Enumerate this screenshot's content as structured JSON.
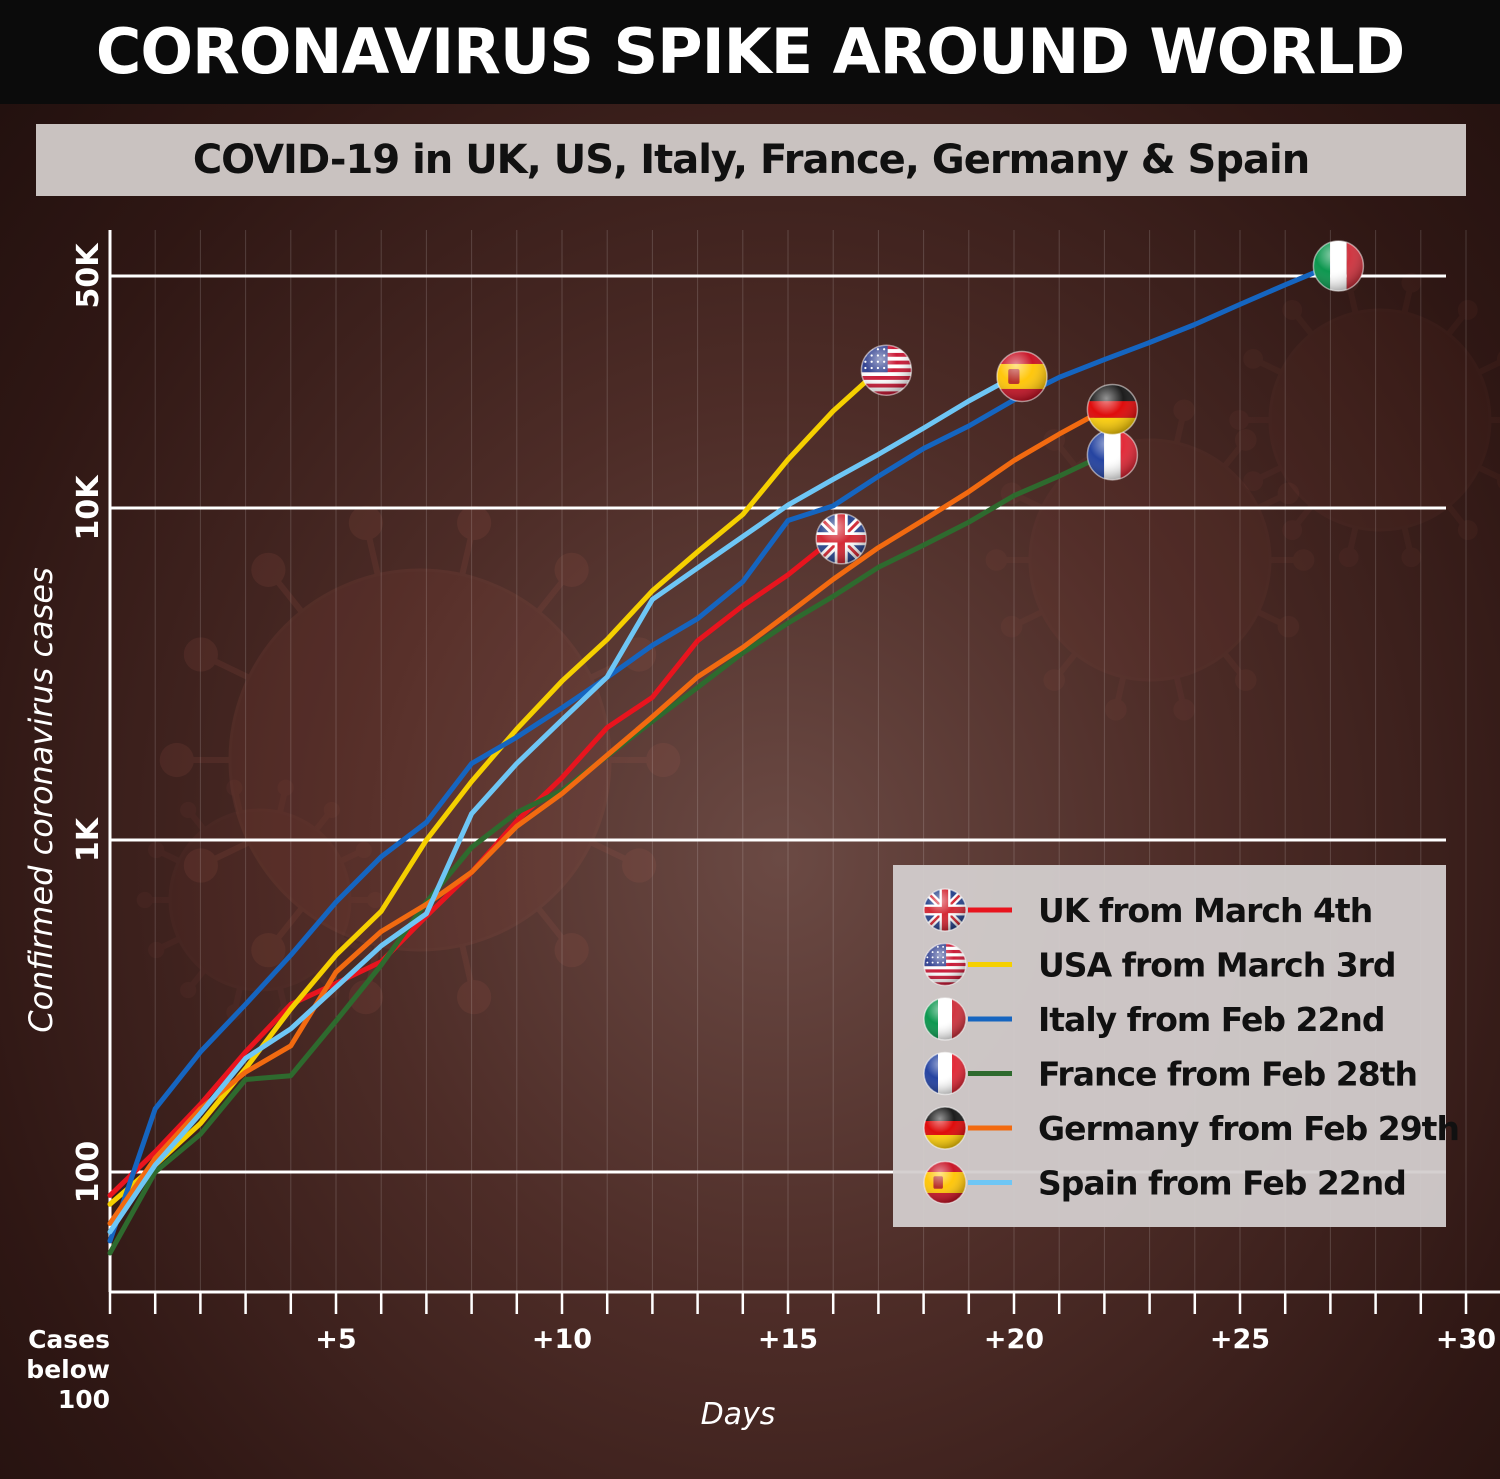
{
  "headline": "CORONAVIRUS SPIKE AROUND WORLD",
  "chart_data": {
    "type": "line",
    "title": "COVID-19 in UK, US, Italy, France, Germany & Spain",
    "xlabel": "Days",
    "ylabel": "Confirmed coronavirus cases",
    "y_scale": "log",
    "ylim": [
      45,
      60000
    ],
    "xlim": [
      0,
      30
    ],
    "x_ticks": [
      {
        "value": 0,
        "label": "Cases below 100"
      },
      {
        "value": 5,
        "label": "+5"
      },
      {
        "value": 10,
        "label": "+10"
      },
      {
        "value": 15,
        "label": "+15"
      },
      {
        "value": 20,
        "label": "+20"
      },
      {
        "value": 25,
        "label": "+25"
      },
      {
        "value": 30,
        "label": "+30"
      }
    ],
    "y_ticks": [
      {
        "value": 100,
        "label": "100"
      },
      {
        "value": 1000,
        "label": "1K"
      },
      {
        "value": 10000,
        "label": "10K"
      },
      {
        "value": 50000,
        "label": "50K"
      }
    ],
    "legend_position": "bottom-right",
    "series": [
      {
        "name": "UK from March 4th",
        "color": "#e8141e",
        "flag": "uk-flag",
        "x": [
          0,
          1,
          2,
          3,
          4,
          5,
          6,
          7,
          8,
          9,
          10,
          11,
          12,
          13,
          14,
          15,
          16
        ],
        "y": [
          85,
          115,
          160,
          230,
          320,
          370,
          430,
          590,
          800,
          1140,
          1540,
          2180,
          2690,
          3980,
          5080,
          6290,
          8080
        ]
      },
      {
        "name": "USA from March 3rd",
        "color": "#f5d000",
        "flag": "us-flag",
        "x": [
          0,
          1,
          2,
          3,
          4,
          5,
          6,
          7,
          8,
          9,
          10,
          11,
          12,
          13,
          14,
          15,
          16,
          17
        ],
        "y": [
          80,
          105,
          140,
          205,
          310,
          450,
          610,
          1000,
          1500,
          2160,
          3010,
          4020,
          5630,
          7380,
          9560,
          14000,
          19600,
          26000
        ]
      },
      {
        "name": "Italy from Feb 22nd",
        "color": "#1565c0",
        "flag": "italy-flag",
        "x": [
          0,
          1,
          2,
          3,
          4,
          5,
          6,
          7,
          8,
          9,
          10,
          11,
          12,
          13,
          14,
          15,
          16,
          17,
          18,
          19,
          20,
          21,
          22,
          23,
          24,
          25,
          26,
          27
        ],
        "y": [
          62,
          155,
          230,
          320,
          450,
          650,
          890,
          1130,
          1700,
          2040,
          2500,
          3090,
          3860,
          4640,
          6000,
          9170,
          10150,
          12460,
          15110,
          17660,
          21160,
          24750,
          27980,
          31510,
          35710,
          41040,
          47020,
          53580
        ]
      },
      {
        "name": "France from Feb 28th",
        "color": "#2e6a2e",
        "flag": "france-flag",
        "x": [
          0,
          1,
          2,
          3,
          4,
          5,
          6,
          7,
          8,
          9,
          10,
          11,
          12,
          13,
          14,
          15,
          16,
          17,
          18,
          19,
          20,
          21,
          22
        ],
        "y": [
          57,
          100,
          130,
          190,
          195,
          285,
          420,
          650,
          950,
          1210,
          1410,
          1790,
          2280,
          2880,
          3660,
          4500,
          5420,
          6630,
          7730,
          9060,
          10900,
          12480,
          14460
        ]
      },
      {
        "name": "Germany from Feb 29th",
        "color": "#f26a10",
        "flag": "germany-flag",
        "x": [
          0,
          1,
          2,
          3,
          4,
          5,
          6,
          7,
          8,
          9,
          10,
          11,
          12,
          13,
          14,
          15,
          16,
          17,
          18,
          19,
          20,
          21,
          22
        ],
        "y": [
          70,
          110,
          155,
          200,
          240,
          400,
          530,
          640,
          800,
          1100,
          1380,
          1800,
          2350,
          3100,
          3800,
          4800,
          6100,
          7600,
          9200,
          11200,
          13900,
          16700,
          19800
        ]
      },
      {
        "name": "Spain from Feb 22nd",
        "color": "#6ec6f5",
        "flag": "spain-flag",
        "x": [
          0,
          1,
          2,
          3,
          4,
          5,
          6,
          7,
          8,
          9,
          10,
          11,
          12,
          13,
          14,
          15,
          16,
          17,
          18,
          19,
          20
        ],
        "y": [
          66,
          105,
          150,
          220,
          270,
          360,
          480,
          600,
          1200,
          1700,
          2300,
          3100,
          5300,
          6600,
          8200,
          10200,
          12200,
          14500,
          17400,
          21000,
          24900
        ]
      }
    ]
  }
}
